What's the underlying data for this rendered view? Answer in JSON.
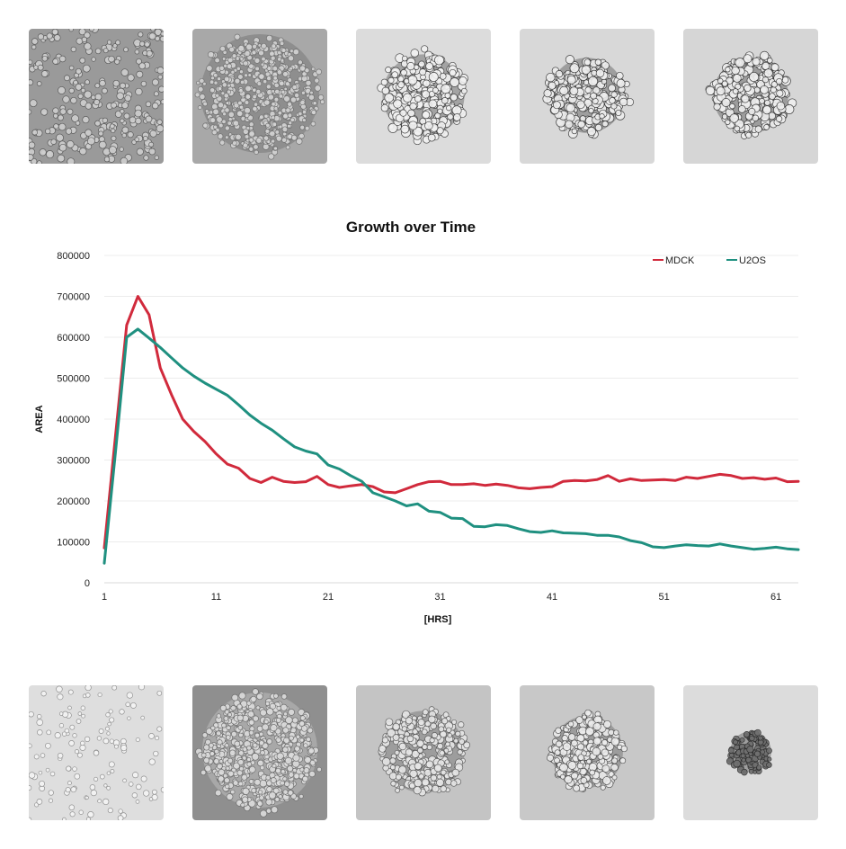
{
  "chart_data": {
    "type": "line",
    "title": "Growth over Time",
    "xlabel": "[HRS]",
    "ylabel": "AREA",
    "xlim": [
      1,
      63
    ],
    "ylim": [
      0,
      800000
    ],
    "x_ticks": [
      1,
      11,
      21,
      31,
      41,
      51,
      61
    ],
    "y_ticks": [
      0,
      100000,
      200000,
      300000,
      400000,
      500000,
      600000,
      700000,
      800000
    ],
    "grid": true,
    "legend_position": "top-right",
    "x": [
      1,
      2,
      3,
      4,
      5,
      6,
      7,
      8,
      9,
      10,
      11,
      12,
      13,
      14,
      15,
      16,
      17,
      18,
      19,
      20,
      21,
      22,
      23,
      24,
      25,
      26,
      27,
      28,
      29,
      30,
      31,
      32,
      33,
      34,
      35,
      36,
      37,
      38,
      39,
      40,
      41,
      42,
      43,
      44,
      45,
      46,
      47,
      48,
      49,
      50,
      51,
      52,
      53,
      54,
      55,
      56,
      57,
      58,
      59,
      60,
      61,
      62,
      63
    ],
    "series": [
      {
        "name": "MDCK",
        "color": "#d12a3c",
        "values": [
          85000,
          360000,
          630000,
          700000,
          655000,
          525000,
          460000,
          400000,
          370000,
          345000,
          315000,
          290000,
          280000,
          255000,
          245000,
          258000,
          248000,
          245000,
          247000,
          260000,
          240000,
          233000,
          237000,
          240000,
          235000,
          222000,
          220000,
          230000,
          240000,
          247000,
          248000,
          240000,
          240000,
          242000,
          238000,
          241000,
          238000,
          232000,
          230000,
          233000,
          235000,
          248000,
          250000,
          249000,
          252000,
          262000,
          248000,
          254000,
          250000,
          251000,
          252000,
          250000,
          258000,
          255000,
          260000,
          265000,
          262000,
          255000,
          257000,
          253000,
          256000,
          247000,
          248000
        ]
      },
      {
        "name": "U2OS",
        "color": "#1f9080",
        "values": [
          48000,
          320000,
          600000,
          620000,
          598000,
          575000,
          550000,
          525000,
          505000,
          488000,
          473000,
          458000,
          435000,
          410000,
          390000,
          373000,
          352000,
          332000,
          322000,
          315000,
          288000,
          278000,
          262000,
          248000,
          220000,
          210000,
          200000,
          188000,
          193000,
          175000,
          172000,
          158000,
          157000,
          138000,
          137000,
          142000,
          140000,
          132000,
          125000,
          123000,
          127000,
          122000,
          121000,
          120000,
          116000,
          116000,
          112000,
          103000,
          98000,
          88000,
          86000,
          90000,
          93000,
          91000,
          90000,
          95000,
          90000,
          86000,
          82000,
          84000,
          87000,
          83000,
          81000
        ]
      }
    ]
  },
  "images": {
    "top_row": [
      "mdck-frame-1",
      "mdck-frame-2",
      "mdck-frame-3",
      "mdck-frame-4",
      "mdck-frame-5"
    ],
    "bottom_row": [
      "u2os-frame-1",
      "u2os-frame-2",
      "u2os-frame-3",
      "u2os-frame-4",
      "u2os-frame-5"
    ]
  }
}
